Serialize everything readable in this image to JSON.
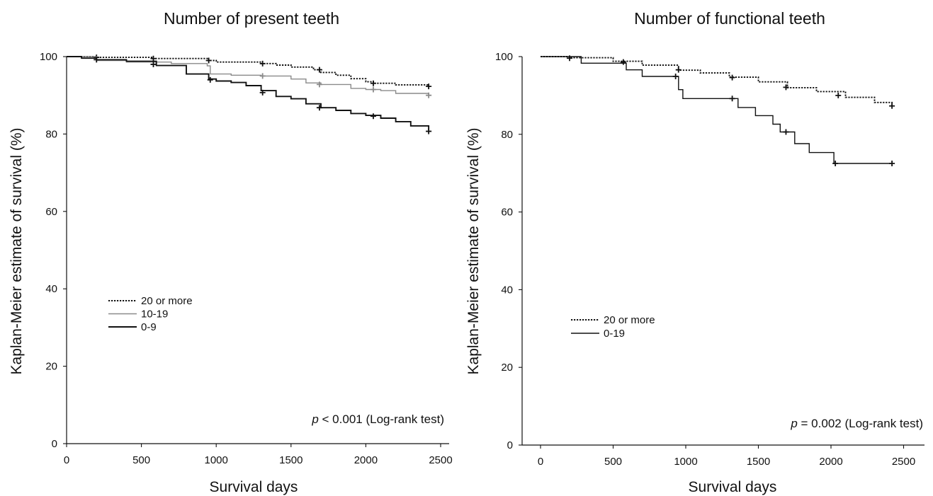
{
  "chart_data": [
    {
      "type": "line",
      "title": "Number of present teeth",
      "xlabel": "Survival days",
      "ylabel": "Kaplan-Meier estimate of survival (%)",
      "xlim": [
        0,
        2500
      ],
      "ylim": [
        0,
        100
      ],
      "xticks": [
        "0",
        "500",
        "1000",
        "1500",
        "2000",
        "2500"
      ],
      "yticks": [
        "0",
        "20",
        "40",
        "60",
        "80",
        "100"
      ],
      "legend_position": "center-left",
      "grid": false,
      "annotation": {
        "p": "p",
        "rest": " < 0.001 (Log-rank test)"
      },
      "series": [
        {
          "name": "20 or more",
          "style": "dotted",
          "color": "#111111",
          "x": [
            0,
            200,
            580,
            950,
            1000,
            1300,
            1400,
            1500,
            1650,
            1700,
            1800,
            1900,
            2000,
            2050,
            2200,
            2420
          ],
          "y": [
            100,
            99.8,
            99.5,
            99,
            98.6,
            98.2,
            97.8,
            97.3,
            96.6,
            95.9,
            95.2,
            94.3,
            93.5,
            93.1,
            92.7,
            92.3
          ],
          "censored_x": [
            200,
            580,
            950,
            1310,
            1690,
            2050,
            2420
          ],
          "censored_y": [
            99.8,
            99.5,
            99,
            98.2,
            96.6,
            93.1,
            92.3
          ]
        },
        {
          "name": "10-19",
          "style": "solid",
          "color": "#8a8a8a",
          "x": [
            0,
            200,
            400,
            700,
            940,
            960,
            1100,
            1300,
            1500,
            1600,
            1700,
            1900,
            2000,
            2100,
            2200,
            2420
          ],
          "y": [
            100,
            99,
            98.6,
            98.2,
            97.6,
            95.5,
            95.2,
            95,
            94.2,
            93.2,
            92.8,
            91.8,
            91.5,
            91.2,
            90.5,
            90.3
          ],
          "censored_x": [
            1310,
            1690,
            2050,
            2420
          ],
          "censored_y": [
            95,
            92.8,
            91.5,
            90
          ]
        },
        {
          "name": "0-9",
          "style": "solid-bold",
          "color": "#111111",
          "x": [
            0,
            100,
            200,
            400,
            600,
            800,
            950,
            1000,
            1100,
            1200,
            1300,
            1400,
            1500,
            1600,
            1700,
            1800,
            1900,
            2000,
            2100,
            2200,
            2300,
            2420
          ],
          "y": [
            100,
            99.6,
            99.2,
            98.8,
            97.7,
            95.5,
            94.2,
            93.7,
            93.3,
            92.5,
            91.2,
            89.7,
            89.1,
            87.8,
            86.8,
            86.1,
            85.3,
            84.8,
            84.1,
            83.2,
            82.1,
            81
          ],
          "censored_x": [
            200,
            580,
            960,
            1310,
            1690,
            2050,
            2420
          ],
          "censored_y": [
            99.2,
            98,
            94,
            90.7,
            86.8,
            84.6,
            80.7
          ]
        }
      ]
    },
    {
      "type": "line",
      "title": "Number of functional teeth",
      "xlabel": "Survival days",
      "ylabel": "Kaplan-Meier estimate of survival (%)",
      "xlim": [
        0,
        2500
      ],
      "ylim": [
        0,
        100
      ],
      "xticks": [
        "0",
        "500",
        "1000",
        "1500",
        "2000",
        "2500"
      ],
      "yticks": [
        "0",
        "20",
        "40",
        "60",
        "80",
        "100"
      ],
      "legend_position": "center-left",
      "grid": false,
      "annotation": {
        "p": "p",
        "rest": " = 0.002 (Log-rank test)"
      },
      "series": [
        {
          "name": "20 or more",
          "style": "dotted",
          "color": "#111111",
          "x": [
            0,
            200,
            500,
            700,
            950,
            1100,
            1300,
            1500,
            1700,
            1900,
            2100,
            2300,
            2420
          ],
          "y": [
            100,
            99.7,
            98.8,
            97.8,
            96.5,
            95.8,
            94.7,
            93.5,
            92,
            91,
            89.5,
            88.2,
            87.3
          ],
          "censored_x": [
            200,
            570,
            950,
            1320,
            1690,
            2050,
            2420
          ],
          "censored_y": [
            99.6,
            98.6,
            96.6,
            94.6,
            92.1,
            90,
            87.3
          ]
        },
        {
          "name": "0-19",
          "style": "solid",
          "color": "#111111",
          "x": [
            0,
            280,
            590,
            700,
            850,
            940,
            950,
            980,
            1300,
            1360,
            1480,
            1600,
            1650,
            1700,
            1750,
            1850,
            2020,
            2420
          ],
          "y": [
            100,
            98.3,
            96.6,
            94.9,
            94.9,
            94.9,
            91.5,
            89.2,
            89.2,
            86.9,
            84.8,
            82.6,
            80.6,
            80.6,
            77.6,
            75.3,
            72.5,
            72.5
          ],
          "censored_x": [
            930,
            1320,
            1690,
            2030,
            2420
          ],
          "censored_y": [
            94.9,
            89.2,
            80.6,
            72.5,
            72.5
          ]
        }
      ]
    }
  ]
}
